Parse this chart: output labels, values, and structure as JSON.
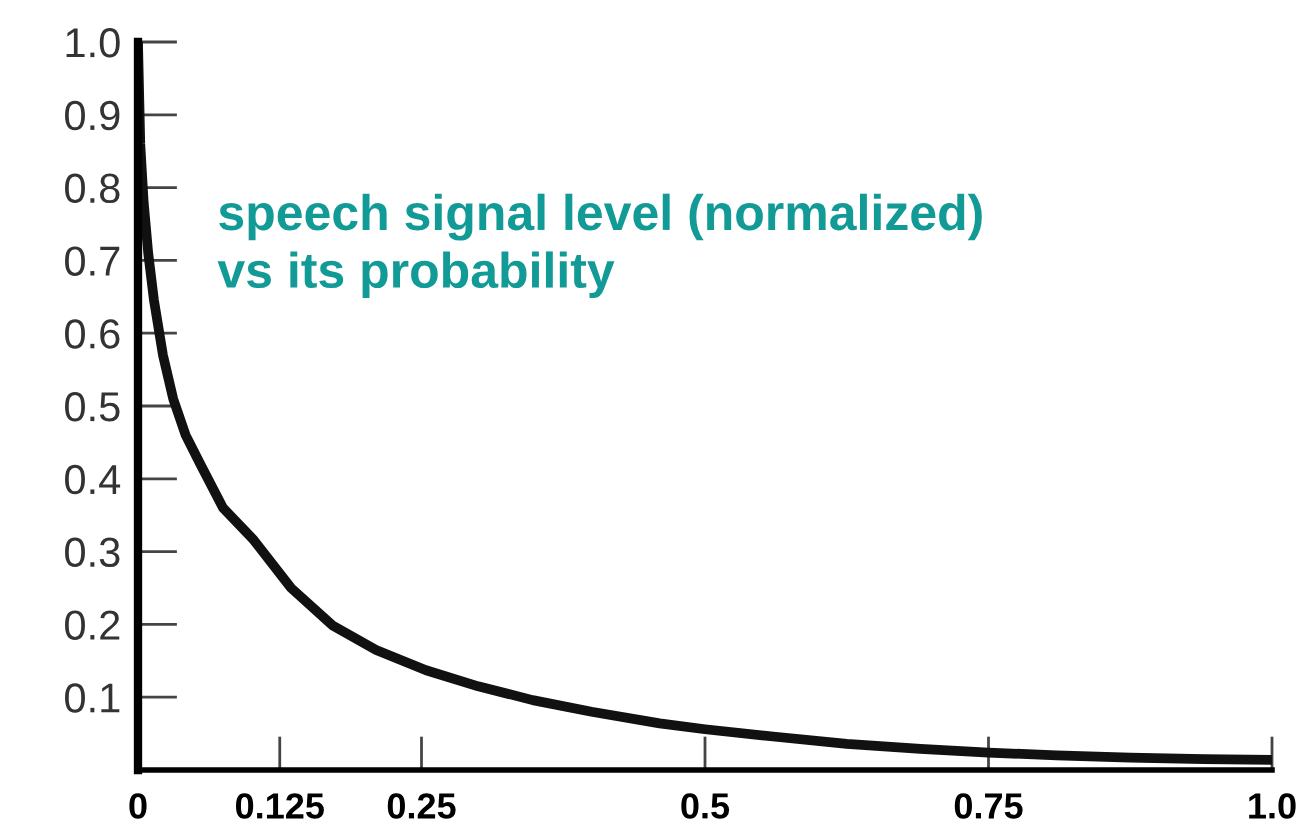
{
  "chart_data": {
    "type": "line",
    "title": "speech signal level (normalized)\nvs its probability",
    "x": [
      0,
      0.002,
      0.005,
      0.009,
      0.014,
      0.022,
      0.031,
      0.042,
      0.055,
      0.075,
      0.102,
      0.135,
      0.172,
      0.21,
      0.254,
      0.3,
      0.348,
      0.4,
      0.46,
      0.5,
      0.56,
      0.625,
      0.69,
      0.75,
      0.81,
      0.875,
      0.94,
      1.0
    ],
    "series": [
      {
        "color": "#111111",
        "values": [
          1.0,
          0.86,
          0.78,
          0.71,
          0.646,
          0.57,
          0.51,
          0.46,
          0.42,
          0.36,
          0.316,
          0.25,
          0.198,
          0.165,
          0.137,
          0.115,
          0.096,
          0.08,
          0.064,
          0.056,
          0.046,
          0.036,
          0.029,
          0.024,
          0.02,
          0.017,
          0.015,
          0.014
        ]
      }
    ],
    "xlim": [
      0,
      1.0
    ],
    "ylim": [
      0,
      1.0
    ],
    "xticks": [
      0,
      0.125,
      0.25,
      0.5,
      0.75,
      {
        "value": 1.0,
        "label": "1.0"
      }
    ],
    "yticks": [
      0.1,
      0.2,
      0.3,
      0.4,
      0.5,
      0.6,
      0.7,
      0.8,
      0.9,
      {
        "value": 1.0,
        "label": "1.0"
      }
    ],
    "grid": false,
    "legend": false,
    "marker": "none",
    "line_style": "solid"
  }
}
